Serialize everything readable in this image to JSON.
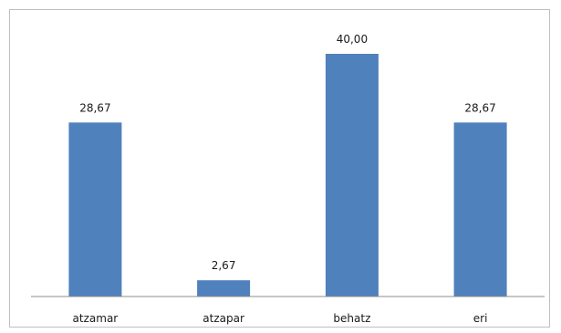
{
  "chart_data": {
    "type": "bar",
    "categories": [
      "atzamar",
      "atzapar",
      "behatz",
      "eri"
    ],
    "values": [
      28.67,
      2.67,
      40.0,
      28.67
    ],
    "data_labels": [
      "28,67",
      "2,67",
      "40,00",
      "28,67"
    ],
    "title": "",
    "xlabel": "",
    "ylabel": "",
    "ylim": [
      0,
      40
    ],
    "grid": false,
    "legend": "none",
    "bar_color": "#4f81bd"
  }
}
